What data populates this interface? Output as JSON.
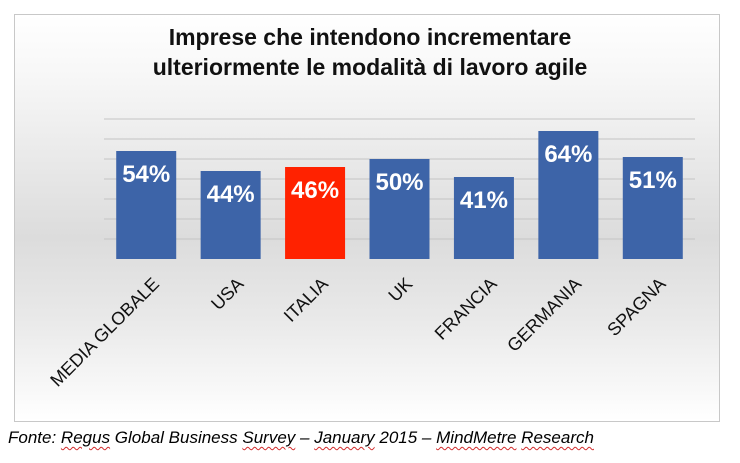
{
  "chart_data": {
    "type": "bar",
    "title_line1": "Imprese che intendono incrementare",
    "title_line2": "ulteriormente le modalità di lavoro agile",
    "categories": [
      "MEDIA GLOBALE",
      "USA",
      "ITALIA",
      "UK",
      "FRANCIA",
      "GERMANIA",
      "SPAGNA"
    ],
    "values": [
      54,
      44,
      46,
      50,
      41,
      64,
      51
    ],
    "value_labels": [
      "54%",
      "44%",
      "46%",
      "50%",
      "41%",
      "64%",
      "51%"
    ],
    "highlight_index": 2,
    "colors": {
      "bar": "#3d64a8",
      "highlight": "#ff2200",
      "label": "#ffffff",
      "grid": "#c4c4c4"
    },
    "ylim": [
      0,
      70
    ],
    "grid": true,
    "xlabel": "",
    "ylabel": ""
  },
  "source": {
    "part1": "Fonte: ",
    "part2": "Regus",
    "part3": " Global Business ",
    "part4": "Survey",
    "part5": " – ",
    "part6": "January",
    "part7": " 2015 – ",
    "part8": "MindMetre",
    "part9": " ",
    "part10": "Research"
  }
}
